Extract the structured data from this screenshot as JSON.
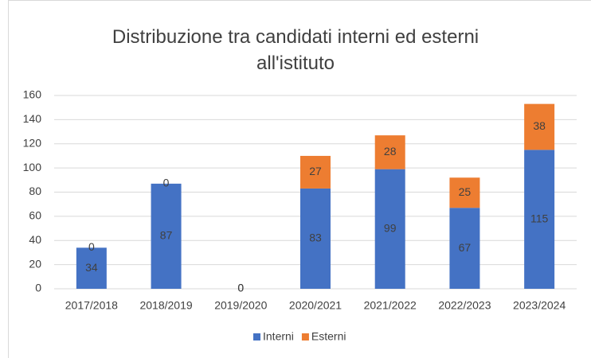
{
  "chart_data": {
    "type": "stacked_bar",
    "title": "Distribuzione tra candidati interni ed esterni all'istituto",
    "categories": [
      "2017/2018",
      "2018/2019",
      "2019/2020",
      "2020/2021",
      "2021/2022",
      "2022/2023",
      "2023/2024"
    ],
    "series": [
      {
        "name": "Interni",
        "color": "#4472c4",
        "values": [
          34,
          87,
          0,
          83,
          99,
          67,
          115
        ]
      },
      {
        "name": "Esterni",
        "color": "#ed7d31",
        "values": [
          0,
          0,
          0,
          27,
          28,
          25,
          38
        ]
      }
    ],
    "ylim": [
      0,
      160
    ],
    "yticks": [
      0,
      20,
      40,
      60,
      80,
      100,
      120,
      140,
      160
    ],
    "grid": true,
    "legend": "bottom"
  }
}
